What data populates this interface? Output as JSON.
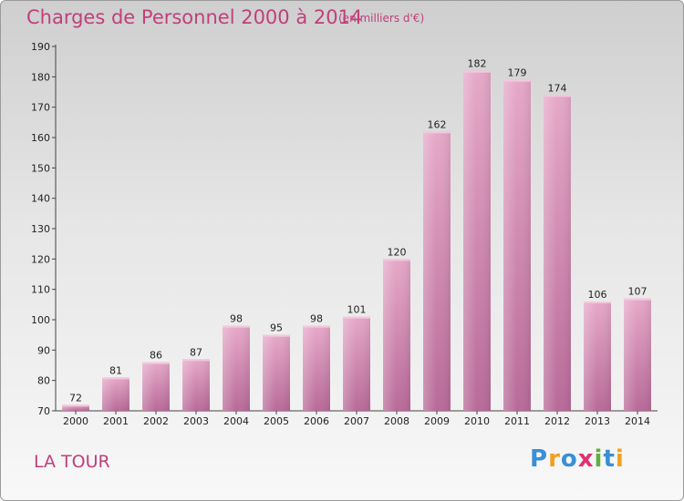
{
  "chart_data": {
    "type": "bar",
    "title": "Charges de Personnel 2000 à 2014",
    "subtitle": "(en milliers d'€)",
    "categories": [
      "2000",
      "2001",
      "2002",
      "2003",
      "2004",
      "2005",
      "2006",
      "2007",
      "2008",
      "2009",
      "2010",
      "2011",
      "2012",
      "2013",
      "2014"
    ],
    "values": [
      72,
      81,
      86,
      87,
      98,
      95,
      98,
      101,
      120,
      162,
      182,
      179,
      174,
      106,
      107
    ],
    "ylim": [
      70,
      190
    ],
    "yticks": [
      70,
      80,
      90,
      100,
      110,
      120,
      130,
      140,
      150,
      160,
      170,
      180,
      190
    ],
    "grid": false,
    "bar_color": "#d9709e"
  },
  "footer": {
    "place": "LA TOUR",
    "logo_letters": [
      "P",
      "r",
      "o",
      "x",
      "i",
      "t",
      "i"
    ],
    "logo_colors": [
      "#3a8fd6",
      "#f0a020",
      "#3a8fd6",
      "#e03070",
      "#60b040",
      "#3a8fd6",
      "#f0a020"
    ]
  }
}
